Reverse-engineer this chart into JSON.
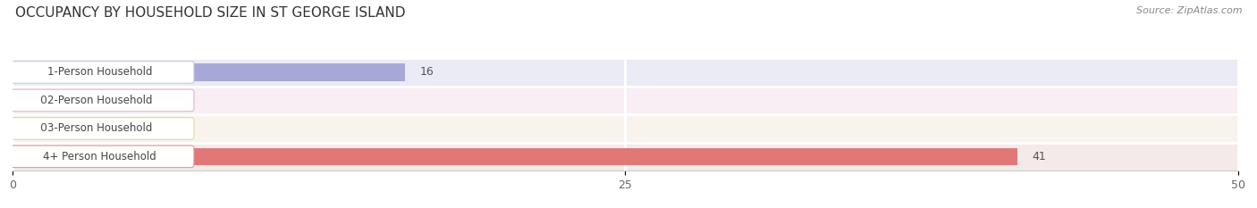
{
  "title": "OCCUPANCY BY HOUSEHOLD SIZE IN ST GEORGE ISLAND",
  "source": "Source: ZipAtlas.com",
  "categories": [
    "1-Person Household",
    "2-Person Household",
    "3-Person Household",
    "4+ Person Household"
  ],
  "values": [
    16,
    0,
    0,
    41
  ],
  "bar_colors": [
    "#a8a8d8",
    "#f0a0b8",
    "#f5c8a0",
    "#e07878"
  ],
  "label_bg_colors": [
    "#c8c8e8",
    "#f0b0c8",
    "#f0d0a8",
    "#e89898"
  ],
  "row_bg_colors": [
    "#ebebf5",
    "#f8eef3",
    "#f8f3ec",
    "#f5eaea"
  ],
  "xlim": [
    0,
    50
  ],
  "xticks": [
    0,
    25,
    50
  ],
  "bar_height": 0.62,
  "title_fontsize": 11,
  "label_fontsize": 8.5,
  "value_fontsize": 9
}
